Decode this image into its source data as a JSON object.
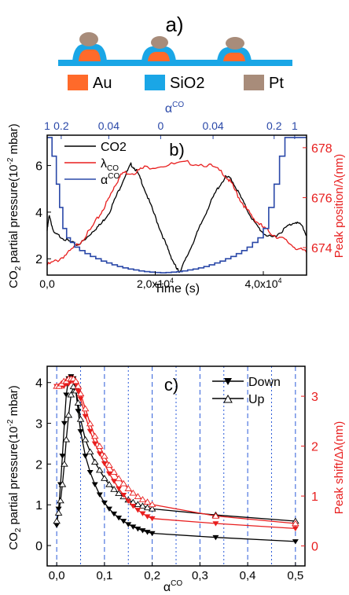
{
  "panel_a": {
    "label": "a)",
    "legend": [
      {
        "name": "Au",
        "color": "#ff6a2a"
      },
      {
        "name": "SiO2",
        "color": "#1aa6e6"
      },
      {
        "name": "Pt",
        "color": "#a88c7a"
      }
    ]
  },
  "colors": {
    "black": "#000000",
    "red": "#e81e1e",
    "blue": "#2a48a8",
    "dashed": "#2a5ad8"
  },
  "chart_data": [
    {
      "type": "line",
      "panel_label": "b)",
      "xlabel": "Time (s)",
      "ylabel_left": "CO2 partial pressure(10-2 mbar)",
      "ylabel_left_parts": {
        "a": "CO",
        "sub": "2",
        "b": " partial pressure(10",
        "sup": "-2",
        "c": " mbar)"
      },
      "ylabel_right": "Peak position/λ(nm)",
      "top_axis_label": "αCO",
      "top_axis_label_parts": {
        "base": "α",
        "sup": "CO"
      },
      "xlim": [
        0,
        48000
      ],
      "ylim_left": [
        1.3,
        7.3
      ],
      "ylim_right": [
        672.9,
        678.5
      ],
      "x_ticks": [
        {
          "v": 0,
          "label": "0,0"
        },
        {
          "v": 20000,
          "label": "2,0x10",
          "sup": "4"
        },
        {
          "v": 40000,
          "label": "4,0x10",
          "sup": "4"
        }
      ],
      "y_left_ticks": [
        2,
        4,
        6
      ],
      "y_right_ticks": [
        674,
        676,
        678
      ],
      "top_ticks": [
        {
          "x": 0,
          "label": "1"
        },
        {
          "x": 2600,
          "label": "0.2"
        },
        {
          "x": 11400,
          "label": "0.04"
        },
        {
          "x": 21000,
          "label": "0"
        },
        {
          "x": 30700,
          "label": "0.04"
        },
        {
          "x": 42000,
          "label": "0.2"
        },
        {
          "x": 45800,
          "label": "1"
        }
      ],
      "legend": [
        {
          "name": "CO2",
          "color": "#000000"
        },
        {
          "name": "λCO",
          "parts": {
            "base": "λ",
            "sub": "CO"
          },
          "color": "#e81e1e"
        },
        {
          "name": "αCO",
          "parts": {
            "base": "α",
            "sup": "CO"
          },
          "color": "#2a48a8"
        }
      ],
      "series": [
        {
          "name": "CO2",
          "axis": "left",
          "points": [
            [
              0,
              3.2
            ],
            [
              400,
              3.9
            ],
            [
              1200,
              3.1
            ],
            [
              2500,
              2.95
            ],
            [
              4000,
              2.75
            ],
            [
              5500,
              2.6
            ],
            [
              7000,
              2.8
            ],
            [
              8500,
              3.2
            ],
            [
              10000,
              3.5
            ],
            [
              11500,
              4.0
            ],
            [
              13000,
              4.8
            ],
            [
              14500,
              5.6
            ],
            [
              15500,
              6.05
            ],
            [
              16500,
              5.8
            ],
            [
              17500,
              5.3
            ],
            [
              19000,
              4.4
            ],
            [
              20500,
              3.5
            ],
            [
              22000,
              2.6
            ],
            [
              23000,
              2.05
            ],
            [
              24000,
              1.55
            ],
            [
              24500,
              1.45
            ],
            [
              25500,
              1.9
            ],
            [
              27000,
              2.7
            ],
            [
              28500,
              3.5
            ],
            [
              30000,
              4.3
            ],
            [
              31500,
              5.0
            ],
            [
              33000,
              5.5
            ],
            [
              34000,
              5.45
            ],
            [
              35500,
              4.8
            ],
            [
              37000,
              4.1
            ],
            [
              38500,
              3.5
            ],
            [
              40000,
              3.1
            ],
            [
              41500,
              2.9
            ],
            [
              43000,
              3.1
            ],
            [
              44500,
              3.4
            ],
            [
              46000,
              3.6
            ],
            [
              47200,
              3.4
            ],
            [
              48000,
              3.0
            ]
          ]
        },
        {
          "name": "λCO",
          "axis": "right",
          "points": [
            [
              0,
              673.3
            ],
            [
              2000,
              673.5
            ],
            [
              4000,
              673.8
            ],
            [
              6000,
              674.2
            ],
            [
              8000,
              674.7
            ],
            [
              10000,
              675.4
            ],
            [
              11500,
              676.0
            ],
            [
              12500,
              676.5
            ],
            [
              14000,
              677.0
            ],
            [
              16000,
              677.0
            ],
            [
              18000,
              677.2
            ],
            [
              22000,
              677.3
            ],
            [
              26000,
              677.4
            ],
            [
              30000,
              677.3
            ],
            [
              32500,
              677.0
            ],
            [
              34000,
              676.6
            ],
            [
              35500,
              676.0
            ],
            [
              37000,
              675.5
            ],
            [
              38500,
              675.1
            ],
            [
              40000,
              674.8
            ],
            [
              42000,
              674.5
            ],
            [
              44000,
              674.3
            ],
            [
              46000,
              674.0
            ],
            [
              48000,
              673.8
            ]
          ]
        },
        {
          "name": "αCO",
          "axis": "left",
          "steps": [
            [
              0,
              7.2
            ],
            [
              900,
              6.4
            ],
            [
              1700,
              5.2
            ],
            [
              2300,
              4.2
            ],
            [
              2900,
              3.3
            ],
            [
              3600,
              2.9
            ],
            [
              4300,
              2.7
            ],
            [
              5100,
              2.5
            ],
            [
              6000,
              2.35
            ],
            [
              7000,
              2.22
            ],
            [
              8000,
              2.1
            ],
            [
              9000,
              2.0
            ],
            [
              10000,
              1.9
            ],
            [
              11000,
              1.82
            ],
            [
              12000,
              1.74
            ],
            [
              13000,
              1.67
            ],
            [
              14000,
              1.61
            ],
            [
              15000,
              1.56
            ],
            [
              16000,
              1.52
            ],
            [
              17000,
              1.48
            ],
            [
              18000,
              1.45
            ],
            [
              19000,
              1.43
            ],
            [
              20000,
              1.41
            ],
            [
              21000,
              1.4
            ],
            [
              22000,
              1.41
            ],
            [
              23000,
              1.43
            ],
            [
              24000,
              1.45
            ],
            [
              25000,
              1.48
            ],
            [
              26000,
              1.52
            ],
            [
              27000,
              1.56
            ],
            [
              28000,
              1.61
            ],
            [
              29000,
              1.67
            ],
            [
              30000,
              1.74
            ],
            [
              31000,
              1.82
            ],
            [
              32000,
              1.9
            ],
            [
              33000,
              2.0
            ],
            [
              34000,
              2.1
            ],
            [
              35000,
              2.22
            ],
            [
              36000,
              2.35
            ],
            [
              37000,
              2.5
            ],
            [
              38000,
              2.7
            ],
            [
              39000,
              2.9
            ],
            [
              40000,
              3.3
            ],
            [
              41000,
              4.2
            ],
            [
              42000,
              5.2
            ],
            [
              43000,
              6.4
            ],
            [
              44000,
              7.2
            ],
            [
              48000,
              7.2
            ]
          ]
        }
      ]
    },
    {
      "type": "line",
      "panel_label": "c)",
      "xlabel": "αCO",
      "xlabel_parts": {
        "base": "α",
        "sup": "CO"
      },
      "ylabel_left": "CO2 partial pressure(10-2 mbar)",
      "ylabel_left_parts": {
        "a": "CO",
        "sub": "2",
        "b": " partial pressure(10",
        "sup": "-2",
        "c": " mbar)"
      },
      "ylabel_right": "Peak shift/Δλ(nm)",
      "xlim": [
        -0.02,
        0.52
      ],
      "ylim_left": [
        -0.5,
        4.4
      ],
      "ylim_right": [
        -0.4,
        3.6
      ],
      "x_ticks": [
        {
          "v": 0.0,
          "label": "0,0"
        },
        {
          "v": 0.1,
          "label": "0,1"
        },
        {
          "v": 0.2,
          "label": "0,2"
        },
        {
          "v": 0.3,
          "label": "0,3"
        },
        {
          "v": 0.4,
          "label": "0,4"
        },
        {
          "v": 0.5,
          "label": "0,5"
        }
      ],
      "y_left_ticks": [
        0,
        1,
        2,
        3,
        4
      ],
      "y_right_ticks": [
        0,
        1,
        2,
        3
      ],
      "vlines_dashed": [
        0.0,
        0.05,
        0.1,
        0.15,
        0.2,
        0.25,
        0.3,
        0.35,
        0.4,
        0.45,
        0.5
      ],
      "legend": [
        {
          "name": "Down",
          "marker": "down-triangle-filled"
        },
        {
          "name": "Up",
          "marker": "up-triangle-open"
        }
      ],
      "series": [
        {
          "name": "Down",
          "axis": "left",
          "color": "#000000",
          "marker": "down",
          "x": [
            0.0,
            0.004,
            0.008,
            0.012,
            0.016,
            0.02,
            0.025,
            0.03,
            0.035,
            0.04,
            0.045,
            0.05,
            0.06,
            0.07,
            0.08,
            0.09,
            0.1,
            0.11,
            0.12,
            0.13,
            0.14,
            0.15,
            0.16,
            0.17,
            0.18,
            0.19,
            0.2,
            0.333,
            0.5
          ],
          "y": [
            0.5,
            0.9,
            1.5,
            2.2,
            3.0,
            3.7,
            4.1,
            4.15,
            4.1,
            3.8,
            3.3,
            2.8,
            2.2,
            1.8,
            1.5,
            1.25,
            1.05,
            0.9,
            0.78,
            0.68,
            0.6,
            0.52,
            0.46,
            0.41,
            0.37,
            0.33,
            0.3,
            0.2,
            0.1
          ]
        },
        {
          "name": "Up",
          "axis": "left",
          "color": "#000000",
          "marker": "up",
          "x": [
            0.0,
            0.004,
            0.008,
            0.012,
            0.016,
            0.02,
            0.025,
            0.03,
            0.035,
            0.04,
            0.045,
            0.05,
            0.06,
            0.07,
            0.08,
            0.09,
            0.1,
            0.11,
            0.12,
            0.13,
            0.14,
            0.15,
            0.16,
            0.17,
            0.18,
            0.19,
            0.2,
            0.333,
            0.5
          ],
          "y": [
            0.6,
            0.8,
            1.1,
            1.5,
            2.0,
            2.6,
            3.2,
            3.7,
            3.9,
            3.8,
            3.5,
            3.1,
            2.6,
            2.3,
            2.05,
            1.85,
            1.65,
            1.5,
            1.38,
            1.28,
            1.2,
            1.12,
            1.06,
            1.01,
            0.97,
            0.93,
            0.9,
            0.75,
            0.6
          ]
        },
        {
          "name": "Down",
          "axis": "right",
          "color": "#e81e1e",
          "marker": "down",
          "x": [
            0.0,
            0.005,
            0.01,
            0.015,
            0.02,
            0.025,
            0.03,
            0.035,
            0.04,
            0.045,
            0.05,
            0.06,
            0.07,
            0.08,
            0.09,
            0.1,
            0.11,
            0.12,
            0.13,
            0.14,
            0.15,
            0.16,
            0.17,
            0.18,
            0.19,
            0.2,
            0.333,
            0.5
          ],
          "y": [
            3.2,
            3.2,
            3.2,
            3.2,
            3.25,
            3.25,
            3.3,
            3.3,
            3.25,
            3.1,
            2.95,
            2.6,
            2.3,
            2.05,
            1.85,
            1.65,
            1.45,
            1.3,
            1.15,
            1.02,
            0.9,
            0.8,
            0.72,
            0.65,
            0.59,
            0.55,
            0.45,
            0.35
          ]
        },
        {
          "name": "Up",
          "axis": "right",
          "color": "#e81e1e",
          "marker": "up",
          "x": [
            0.0,
            0.005,
            0.01,
            0.015,
            0.02,
            0.025,
            0.03,
            0.035,
            0.04,
            0.045,
            0.05,
            0.06,
            0.07,
            0.08,
            0.09,
            0.1,
            0.11,
            0.12,
            0.13,
            0.14,
            0.15,
            0.16,
            0.17,
            0.18,
            0.19,
            0.2,
            0.333,
            0.5
          ],
          "y": [
            3.2,
            3.2,
            3.25,
            3.3,
            3.3,
            3.35,
            3.35,
            3.35,
            3.3,
            3.2,
            3.05,
            2.75,
            2.45,
            2.2,
            2.0,
            1.8,
            1.62,
            1.48,
            1.35,
            1.25,
            1.15,
            1.06,
            0.99,
            0.93,
            0.88,
            0.83,
            0.6,
            0.45
          ]
        }
      ]
    }
  ]
}
